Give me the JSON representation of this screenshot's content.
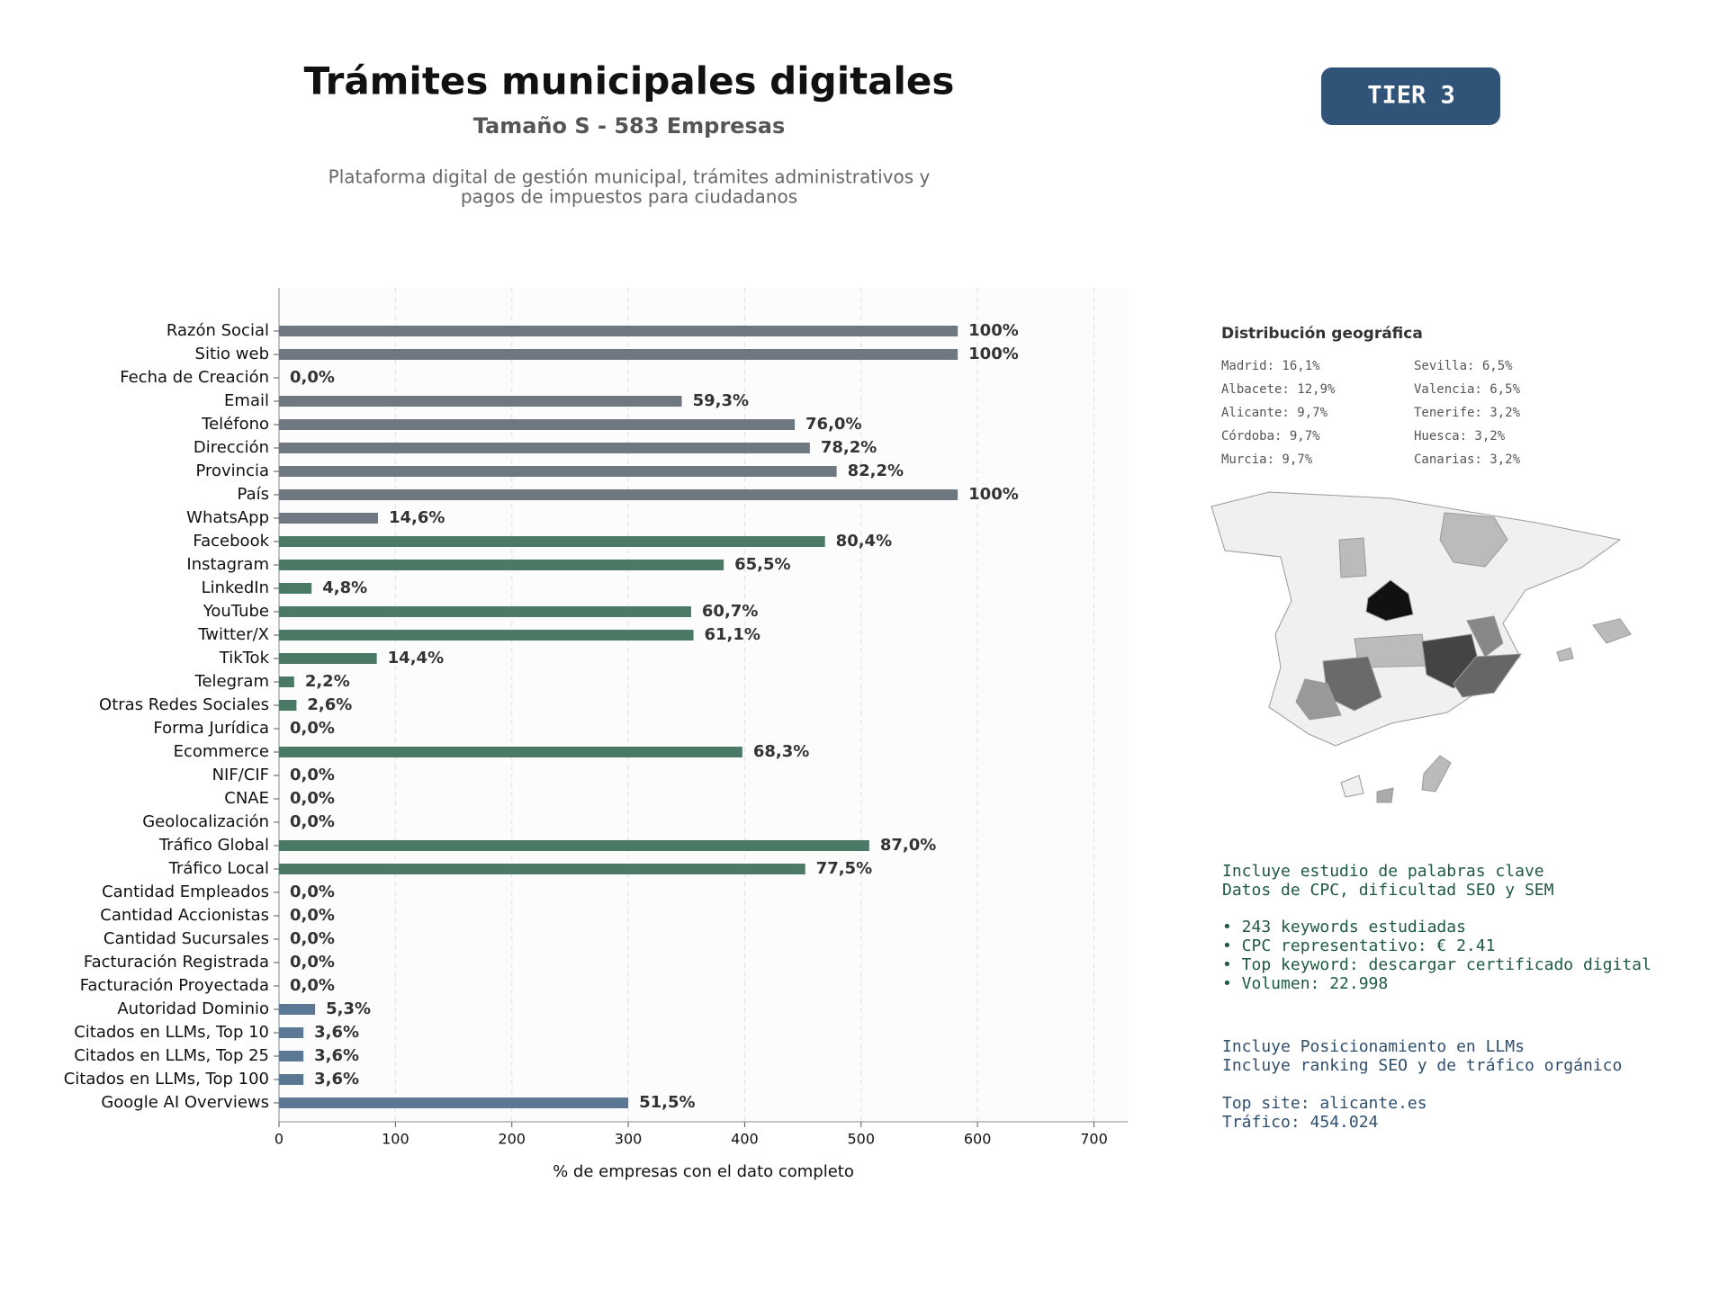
{
  "chart_data": {
    "type": "barh",
    "title": "Trámites municipales digitales",
    "subtitle": "Tamaño S - 583 Empresas",
    "description": [
      "Plataforma digital de gestión municipal, trámites administrativos y",
      "pagos de impuestos para ciudadanos"
    ],
    "xlabel": "% de empresas con el dato completo",
    "categories": [
      "Razón Social",
      "Sitio web",
      "Fecha de Creación",
      "Email",
      "Teléfono",
      "Dirección",
      "Provincia",
      "País",
      "WhatsApp",
      "Facebook",
      "Instagram",
      "LinkedIn",
      "YouTube",
      "Twitter/X",
      "TikTok",
      "Telegram",
      "Otras Redes Sociales",
      "Forma Jurídica",
      "Ecommerce",
      "NIF/CIF",
      "CNAE",
      "Geolocalización",
      "Tráfico Global",
      "Tráfico Local",
      "Cantidad Empleados",
      "Cantidad Accionistas",
      "Cantidad Sucursales",
      "Facturación Registrada",
      "Facturación Proyectada",
      "Autoridad Dominio",
      "Citados en LLMs, Top 10",
      "Citados en LLMs, Top 25",
      "Citados en LLMs, Top 100",
      "Google AI Overviews"
    ],
    "values": [
      583,
      583,
      0,
      346,
      443,
      456,
      479,
      583,
      85,
      469,
      382,
      28,
      354,
      356,
      84,
      13,
      15,
      0,
      398,
      0,
      0,
      0,
      507,
      452,
      0,
      0,
      0,
      0,
      0,
      31,
      21,
      21,
      21,
      300
    ],
    "value_labels": [
      "100%",
      "100%",
      "0,0%",
      "59,3%",
      "76,0%",
      "78,2%",
      "82,2%",
      "100%",
      "14,6%",
      "80,4%",
      "65,5%",
      "4,8%",
      "60,7%",
      "61,1%",
      "14,4%",
      "2,2%",
      "2,6%",
      "0,0%",
      "68,3%",
      "0,0%",
      "0,0%",
      "0,0%",
      "87,0%",
      "77,5%",
      "0,0%",
      "0,0%",
      "0,0%",
      "0,0%",
      "0,0%",
      "5,3%",
      "3,6%",
      "3,6%",
      "3,6%",
      "51,5%"
    ],
    "colors": [
      "#6f7780",
      "#6f7780",
      "#6f7780",
      "#6f7780",
      "#6f7780",
      "#6f7780",
      "#6f7780",
      "#6f7780",
      "#6f7780",
      "#4a7a66",
      "#4a7a66",
      "#4a7a66",
      "#4a7a66",
      "#4a7a66",
      "#4a7a66",
      "#4a7a66",
      "#4a7a66",
      "#4a7a66",
      "#4a7a66",
      "#4a7a66",
      "#4a7a66",
      "#4a7a66",
      "#4a7a66",
      "#4a7a66",
      "#4a7a66",
      "#4a7a66",
      "#4a7a66",
      "#4a7a66",
      "#4a7a66",
      "#5a7894",
      "#5a7894",
      "#5a7894",
      "#5a7894",
      "#5a7894"
    ],
    "xlim": [
      0,
      729
    ],
    "xticks": [
      0,
      100,
      200,
      300,
      400,
      500,
      600,
      700
    ],
    "grid": true
  },
  "badge": "TIER 3",
  "geo": {
    "title": "Distribución geográfica",
    "items": [
      "Madrid: 16,1%",
      "Albacete: 12,9%",
      "Alicante: 9,7%",
      "Córdoba: 9,7%",
      "Murcia: 9,7%",
      "Sevilla: 6,5%",
      "Valencia: 6,5%",
      "Tenerife: 3,2%",
      "Huesca: 3,2%",
      "Canarias: 3,2%"
    ]
  },
  "seo": {
    "intro": [
      "Incluye estudio de palabras clave",
      "Datos de CPC, dificultad SEO y SEM"
    ],
    "bullets": [
      "• 243 keywords estudiadas",
      "• CPC representativo: € 2.41",
      "• Top keyword: descargar certificado digital",
      "• Volumen: 22.998"
    ]
  },
  "llm": {
    "intro": [
      "Incluye Posicionamiento en LLMs",
      "Incluye ranking SEO y de tráfico orgánico"
    ],
    "site": [
      "Top site: alicante.es",
      "Tráfico: 454.024"
    ]
  }
}
